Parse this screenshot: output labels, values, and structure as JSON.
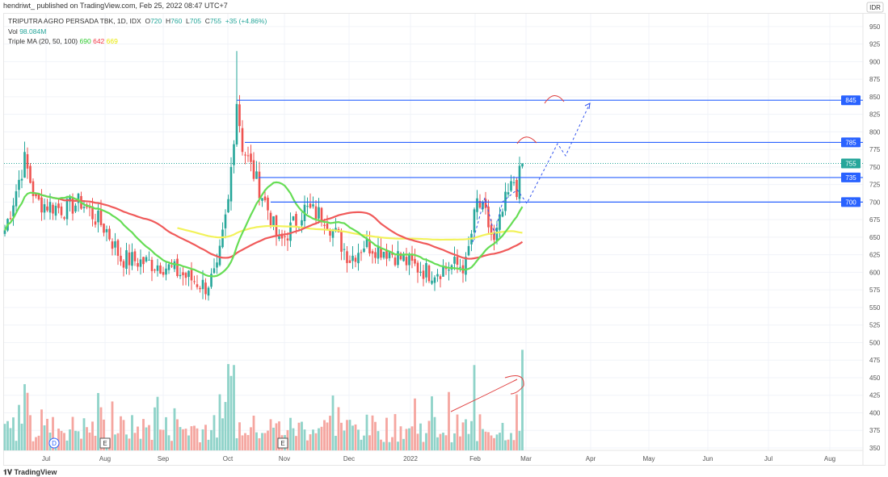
{
  "publisher": "hendriwt_ published on TradingView.com, Feb 25, 2022 08:47 UTC+7",
  "symbol": "TRIPUTRA AGRO PERSADA TBK, 1D, IDX",
  "ohlc": {
    "o_label": "O",
    "o": "720",
    "h_label": "H",
    "h": "760",
    "l_label": "L",
    "l": "705",
    "c_label": "C",
    "c": "755",
    "change": "+35 (+4.86%)"
  },
  "vol": {
    "label": "Vol",
    "value": "98.084M"
  },
  "ma": {
    "label": "Triple MA (20, 50, 100)",
    "ma20": "690",
    "ma50": "642",
    "ma100": "669"
  },
  "currency": "IDR",
  "footer": "TradingView",
  "colors": {
    "up": "#26a69a",
    "down": "#ef5350",
    "vol_up": "#8fd3c9",
    "vol_down": "#f5a6a0",
    "ma20": "#66dd55",
    "ma50": "#f05a5a",
    "ma100": "#f2f25a",
    "level": "#2962ff"
  },
  "chart_data": {
    "type": "candlestick",
    "ylim": [
      350,
      950
    ],
    "yticks": [
      350,
      375,
      400,
      425,
      450,
      475,
      500,
      525,
      550,
      575,
      600,
      625,
      650,
      675,
      700,
      725,
      750,
      775,
      800,
      825,
      850,
      875,
      900,
      925,
      950
    ],
    "xticks": [
      "Jul",
      "Aug",
      "Sep",
      "Oct",
      "Nov",
      "Dec",
      "2022",
      "Feb",
      "Mar",
      "Apr",
      "May",
      "Jun",
      "Jul",
      "Aug"
    ],
    "price_path_keypoints": [
      [
        0,
        660
      ],
      [
        7,
        760
      ],
      [
        11,
        700
      ],
      [
        21,
        690
      ],
      [
        27,
        700
      ],
      [
        36,
        660
      ],
      [
        41,
        620
      ],
      [
        56,
        610
      ],
      [
        71,
        580
      ],
      [
        75,
        600
      ],
      [
        79,
        700
      ],
      [
        82,
        845
      ],
      [
        84,
        780
      ],
      [
        89,
        730
      ],
      [
        93,
        690
      ],
      [
        97,
        640
      ],
      [
        106,
        690
      ],
      [
        113,
        680
      ],
      [
        122,
        620
      ],
      [
        127,
        640
      ],
      [
        136,
        630
      ],
      [
        144,
        610
      ],
      [
        150,
        600
      ],
      [
        159,
        610
      ],
      [
        163,
        610
      ],
      [
        167,
        700
      ],
      [
        170,
        680
      ],
      [
        173,
        640
      ],
      [
        177,
        700
      ],
      [
        180,
        730
      ],
      [
        181,
        720
      ],
      [
        183,
        755
      ]
    ],
    "last_price": 755,
    "levels": [
      845,
      785,
      735,
      700
    ],
    "events": [
      "D",
      "E",
      "E"
    ]
  }
}
